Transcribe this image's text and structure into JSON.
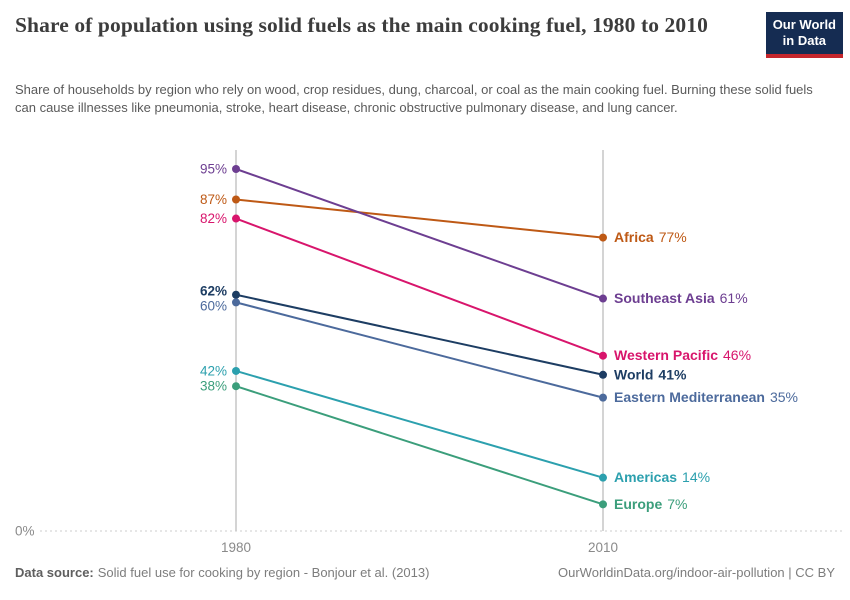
{
  "chart_data": {
    "type": "line",
    "title": "Share of population using solid fuels as the main cooking fuel, 1980 to 2010",
    "subtitle": "Share of households by region who rely on wood, crop residues, dung, charcoal, or coal as the main cooking fuel. Burning these solid fuels can cause illnesses like pneumonia, stroke, heart disease, chronic obstructive pulmonary disease, and lung cancer.",
    "x": [
      1980,
      2010
    ],
    "x_ticks": [
      "1980",
      "2010"
    ],
    "unit": "%",
    "ylim": [
      0,
      95
    ],
    "baseline_label": "0%",
    "grid": "baseline-dashed-only",
    "legend_position": "inline-right",
    "series": [
      {
        "name": "Africa",
        "values": [
          87,
          77
        ],
        "color": "#be5915",
        "emphasis": false
      },
      {
        "name": "Southeast Asia",
        "values": [
          95,
          61
        ],
        "color": "#6d3e91",
        "emphasis": false
      },
      {
        "name": "Western Pacific",
        "values": [
          82,
          46
        ],
        "color": "#d8156c",
        "emphasis": false
      },
      {
        "name": "World",
        "values": [
          62,
          41
        ],
        "color": "#1d3d63",
        "emphasis": true
      },
      {
        "name": "Eastern Mediterranean",
        "values": [
          60,
          35
        ],
        "color": "#4c6a9c",
        "emphasis": false
      },
      {
        "name": "Americas",
        "values": [
          42,
          14
        ],
        "color": "#2ca0ae",
        "emphasis": false
      },
      {
        "name": "Europe",
        "values": [
          38,
          7
        ],
        "color": "#3b9e7b",
        "emphasis": false
      }
    ]
  },
  "logo": {
    "line1": "Our World",
    "line2": "in Data",
    "bg_color": "#152c52",
    "bar_color": "#c5262c"
  },
  "footer": {
    "source_label": "Data source:",
    "source": "Solid fuel use for cooking by region - Bonjour et al. (2013)",
    "attribution": "OurWorldinData.org/indoor-air-pollution | CC BY"
  }
}
